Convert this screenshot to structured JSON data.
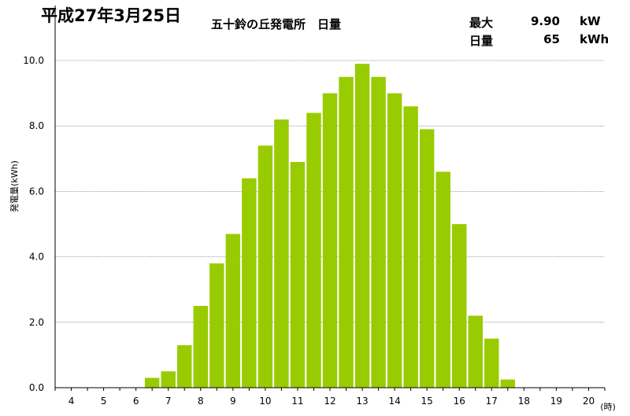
{
  "header": {
    "date": "平成27年3月25日",
    "title": "五十鈴の丘発電所　日量",
    "summary": [
      {
        "label": "最大",
        "value": "9.90",
        "unit": "kW"
      },
      {
        "label": "日量",
        "value": "65",
        "unit": "kWh"
      }
    ]
  },
  "colors": {
    "bar": "#99CC00",
    "grid": "#808080"
  },
  "chart_data": {
    "type": "bar",
    "xlabel": "(時)",
    "ylabel": "発電量(kWh)",
    "ylim": [
      0,
      10
    ],
    "yticks": [
      "0.0",
      "2.0",
      "4.0",
      "6.0",
      "8.0",
      "10.0"
    ],
    "xticks": [
      "4",
      "5",
      "6",
      "7",
      "8",
      "9",
      "10",
      "11",
      "12",
      "13",
      "14",
      "15",
      "16",
      "17",
      "18",
      "19",
      "20"
    ],
    "x": [
      6.5,
      7.0,
      7.5,
      8.0,
      8.5,
      9.0,
      9.5,
      10.0,
      10.5,
      11.0,
      11.5,
      12.0,
      12.5,
      13.0,
      13.5,
      14.0,
      14.5,
      15.0,
      15.5,
      16.0,
      16.5,
      17.0,
      17.5
    ],
    "values": [
      0.3,
      0.5,
      1.3,
      2.5,
      3.8,
      4.7,
      6.4,
      7.4,
      8.2,
      6.9,
      8.4,
      9.0,
      9.5,
      9.9,
      9.5,
      9.0,
      8.6,
      7.9,
      6.6,
      5.0,
      2.2,
      1.5,
      0.25
    ],
    "grid": true
  }
}
